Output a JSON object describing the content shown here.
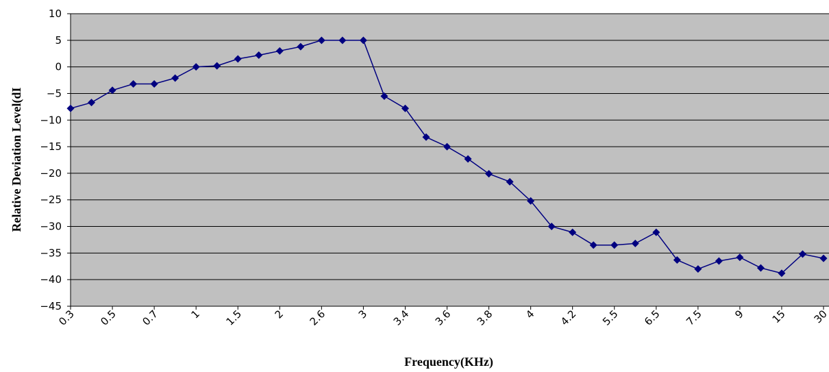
{
  "chart_data": {
    "type": "line",
    "title": "",
    "xlabel": "Frequency(KHz)",
    "ylabel": "Relative Deviation Level(dI",
    "ylim": [
      -45,
      10
    ],
    "yticks": [
      10,
      5,
      0,
      -5,
      -10,
      -15,
      -20,
      -25,
      -30,
      -35,
      -40,
      -45
    ],
    "grid": true,
    "legend": "none",
    "x_tick_labels": [
      "0.3",
      "0.5",
      "0.7",
      "1",
      "1.5",
      "2",
      "2.6",
      "3",
      "3.4",
      "3.6",
      "3.8",
      "4",
      "4.2",
      "5.5",
      "6.5",
      "7.5",
      "9",
      "15",
      "30"
    ],
    "series": [
      {
        "values": [
          -7.8,
          -6.7,
          -4.4,
          -3.2,
          -3.2,
          -2.1,
          0.0,
          0.2,
          1.5,
          2.2,
          3.0,
          3.8,
          5.0,
          5.0,
          5.0,
          -5.5,
          -7.8,
          -13.2,
          -15.0,
          -17.3,
          -20.1,
          -21.6,
          -25.2,
          -30.0,
          -31.1,
          -33.5,
          -33.5,
          -33.2,
          -31.1,
          -36.3,
          -38.0,
          -36.5,
          -35.8,
          -37.8,
          -38.8,
          -35.2,
          -36.0
        ],
        "color": "#000080"
      }
    ],
    "plot_background": "#c0c0c0"
  }
}
